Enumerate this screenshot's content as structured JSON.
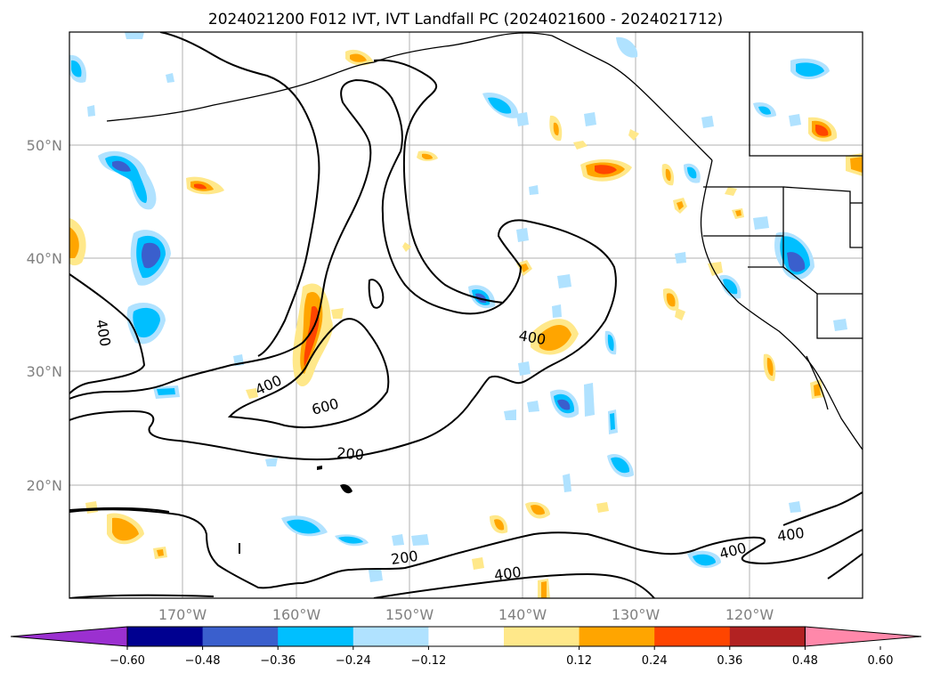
{
  "title": "2024021200 F012 IVT, IVT Landfall PC (2024021600 - 2024021712)",
  "map": {
    "lon_range": [
      -180,
      -110
    ],
    "lat_range": [
      10,
      60
    ],
    "lat_ticks": [
      "50°N",
      "40°N",
      "30°N",
      "20°N"
    ],
    "lon_ticks": [
      "170°W",
      "160°W",
      "150°W",
      "140°W",
      "130°W",
      "120°W"
    ],
    "contour_labels": [
      "400",
      "400",
      "600",
      "200",
      "400",
      "200",
      "400",
      "400",
      "400"
    ],
    "colorbar": {
      "colors": [
        "#9b30d0",
        "#000090",
        "#3a5fcd",
        "#00bfff",
        "#b0e2ff",
        "#ffffff",
        "#ffe88a",
        "#ffa500",
        "#ff4500",
        "#b22222",
        "#ff88aa"
      ],
      "ticks": [
        "−0.60",
        "−0.48",
        "−0.36",
        "−0.24",
        "−0.12",
        "0.12",
        "0.24",
        "0.36",
        "0.48",
        "0.60"
      ]
    }
  }
}
